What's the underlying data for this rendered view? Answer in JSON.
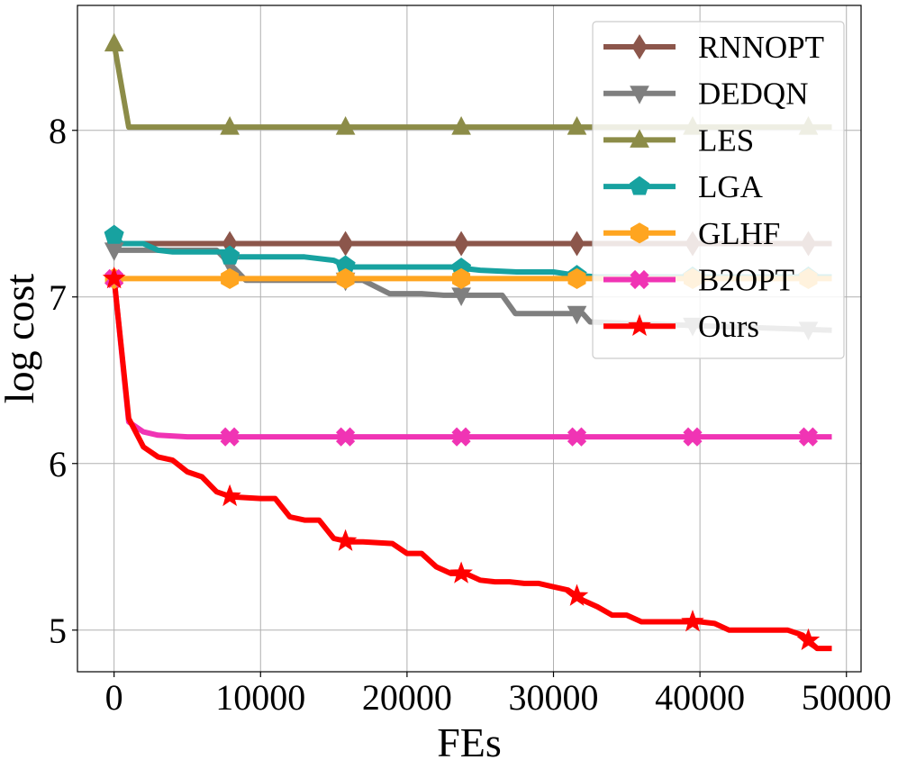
{
  "chart_data": {
    "type": "line",
    "xlabel": "FEs",
    "ylabel": "log cost",
    "xlim": [
      -2500,
      51000
    ],
    "ylim": [
      4.75,
      8.75
    ],
    "xticks": [
      0,
      10000,
      20000,
      30000,
      40000,
      50000
    ],
    "yticks": [
      5,
      6,
      7,
      8
    ],
    "grid": true,
    "legend_position": "top-right",
    "series": [
      {
        "name": "RNNOPT",
        "color": "#8c564b",
        "marker": "diamond",
        "x": [
          0,
          49000
        ],
        "y": [
          7.32,
          7.32
        ],
        "marker_x": [
          0,
          7900,
          15800,
          23700,
          31600,
          39500,
          47400
        ]
      },
      {
        "name": "DEDQN",
        "color": "#7f7f7f",
        "marker": "triangle-down",
        "x": [
          0,
          7000,
          9000,
          17000,
          18800,
          21000,
          22500,
          26500,
          27400,
          32000,
          32500,
          49000
        ],
        "y": [
          7.28,
          7.28,
          7.1,
          7.1,
          7.02,
          7.02,
          7.01,
          7.01,
          6.9,
          6.9,
          6.85,
          6.8
        ],
        "marker_x": [
          0,
          7900,
          15800,
          23700,
          31600,
          39500,
          47400
        ]
      },
      {
        "name": "LES",
        "color": "#8c8c48",
        "marker": "triangle-up",
        "x": [
          0,
          1000,
          49000
        ],
        "y": [
          8.52,
          8.02,
          8.02
        ],
        "marker_x": [
          0,
          7900,
          15800,
          23700,
          31600,
          39500,
          47400
        ]
      },
      {
        "name": "LGA",
        "color": "#17a2a0",
        "marker": "pentagon",
        "x": [
          0,
          500,
          2000,
          3000,
          4000,
          6000,
          7500,
          8000,
          13000,
          15000,
          16000,
          23000,
          25000,
          27500,
          30000,
          31500,
          33000,
          49000
        ],
        "y": [
          7.37,
          7.32,
          7.32,
          7.28,
          7.27,
          7.27,
          7.27,
          7.24,
          7.24,
          7.22,
          7.18,
          7.18,
          7.16,
          7.15,
          7.15,
          7.13,
          7.12,
          7.12
        ],
        "marker_x": [
          0,
          7900,
          15800,
          23700,
          31600,
          39500,
          47400
        ]
      },
      {
        "name": "GLHF",
        "color": "#ffa520",
        "marker": "hexagon",
        "x": [
          0,
          49000
        ],
        "y": [
          7.11,
          7.11
        ],
        "marker_x": [
          0,
          7900,
          15800,
          23700,
          31600,
          39500,
          47400
        ]
      },
      {
        "name": "B2OPT",
        "color": "#f034b4",
        "marker": "x-filled",
        "x": [
          0,
          1000,
          2000,
          3000,
          5000,
          49000
        ],
        "y": [
          7.11,
          6.25,
          6.19,
          6.17,
          6.16,
          6.16
        ],
        "marker_x": [
          0,
          7900,
          15800,
          23700,
          31600,
          39500,
          47400
        ]
      },
      {
        "name": "Ours",
        "color": "#ff0000",
        "marker": "star",
        "x": [
          0,
          1000,
          2000,
          3000,
          4000,
          5000,
          6000,
          7000,
          8000,
          10000,
          11000,
          12000,
          13000,
          14000,
          15000,
          16000,
          17000,
          19000,
          20000,
          21000,
          22000,
          23000,
          24000,
          25000,
          26000,
          27000,
          28000,
          29000,
          30000,
          31000,
          32000,
          33000,
          34000,
          35000,
          36000,
          37000,
          38000,
          39000,
          40000,
          41000,
          42000,
          43000,
          44000,
          45000,
          46000,
          47000,
          48000,
          49000
        ],
        "y": [
          7.11,
          6.27,
          6.1,
          6.04,
          6.02,
          5.95,
          5.92,
          5.83,
          5.8,
          5.79,
          5.79,
          5.68,
          5.66,
          5.66,
          5.55,
          5.53,
          5.53,
          5.52,
          5.46,
          5.46,
          5.38,
          5.34,
          5.34,
          5.3,
          5.29,
          5.29,
          5.28,
          5.28,
          5.26,
          5.24,
          5.18,
          5.14,
          5.09,
          5.09,
          5.05,
          5.05,
          5.05,
          5.05,
          5.05,
          5.04,
          5.0,
          5.0,
          5.0,
          5.0,
          5.0,
          4.97,
          4.89,
          4.89
        ],
        "marker_x": [
          0,
          7900,
          15800,
          23700,
          31600,
          39500,
          47400
        ]
      }
    ]
  }
}
